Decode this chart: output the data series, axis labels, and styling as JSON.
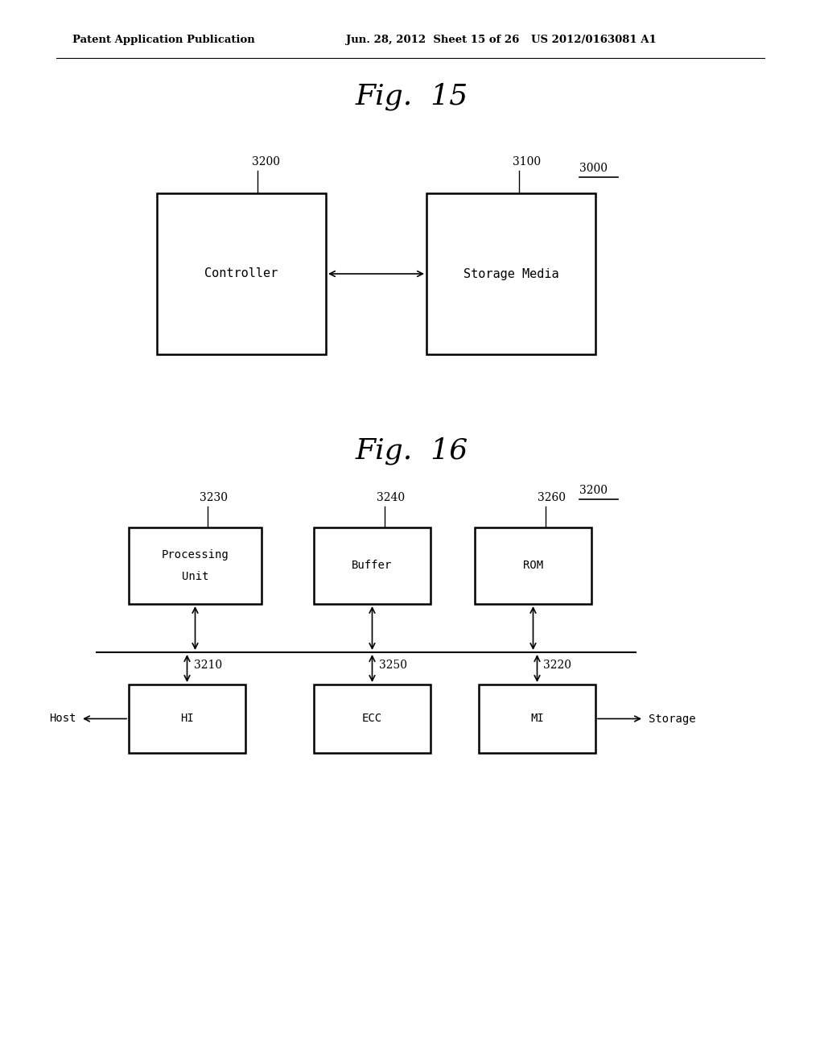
{
  "bg_color": "#ffffff",
  "header_left": "Patent Application Publication",
  "header_mid": "Jun. 28, 2012  Sheet 15 of 26",
  "header_right": "US 2012/0163081 A1",
  "fig15_title": "Fig.  15",
  "fig16_title": "Fig.  16",
  "fig15_label_outer": "3000",
  "fig15_label_ctrl": "3200",
  "fig15_label_storage": "3100",
  "fig16_label_outer": "3200",
  "fig16_label_pu": "3230",
  "fig16_label_buf": "3240",
  "fig16_label_rom": "3260",
  "fig16_label_hi": "3210",
  "fig16_label_ecc": "3250",
  "fig16_label_mi": "3220"
}
